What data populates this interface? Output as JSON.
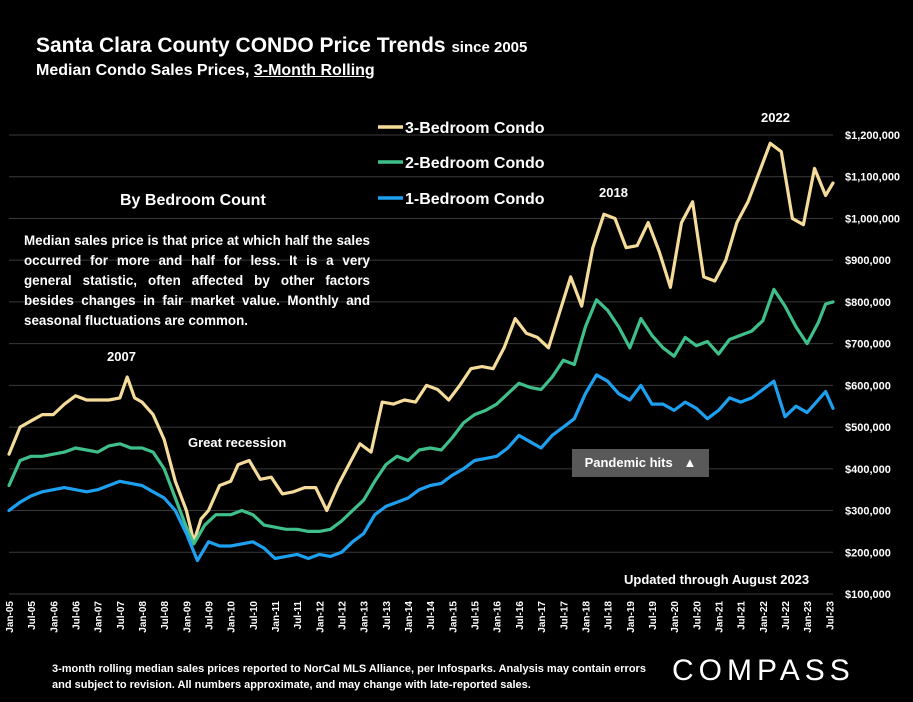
{
  "header": {
    "title": "Santa Clara County CONDO Price Trends",
    "title_suffix": "since 2005",
    "subtitle_prefix": "Median Condo Sales Prices, ",
    "subtitle_underlined": "3-Month Rolling"
  },
  "description": {
    "heading": "By Bedroom Count",
    "body": "Median sales price is that price at which half the sales occurred for more and half for less. It is a very general statistic, often affected by other factors besides changes in fair market value. Monthly and seasonal fluctuations are common."
  },
  "annotations": {
    "a2007": "2007",
    "recession": "Great recession",
    "a2018": "2018",
    "a2022": "2022",
    "pandemic": "Pandemic hits",
    "pandemic_arrow": "▲",
    "updated": "Updated through August 2023"
  },
  "footnote": "3-month rolling median sales prices reported to NorCal MLS Alliance, per Infosparks.  Analysis may contain errors and subject to revision. All numbers approximate, and may change with late-reported sales.",
  "logo": "COMPASS",
  "colors": {
    "bed3": "#f5dc9a",
    "bed2": "#3fbf8a",
    "bed1": "#1ea0f0",
    "grid": "#3a3a3a",
    "background": "#000000"
  },
  "chart_data": {
    "type": "line",
    "title": "Santa Clara County CONDO Price Trends since 2005",
    "subtitle": "Median Condo Sales Prices, 3-Month Rolling",
    "ylim": [
      100000,
      1200000
    ],
    "yticks": [
      100000,
      200000,
      300000,
      400000,
      500000,
      600000,
      700000,
      800000,
      900000,
      1000000,
      1100000,
      1200000
    ],
    "ytick_labels": [
      "$100,000",
      "$200,000",
      "$300,000",
      "$400,000",
      "$500,000",
      "$600,000",
      "$700,000",
      "$800,000",
      "$900,000",
      "$1,000,000",
      "$1,100,000",
      "$1,200,000"
    ],
    "grid": true,
    "legend_position": "top-center",
    "xlim": [
      "2005-01",
      "2023-08"
    ],
    "xtick_labels": [
      "Jan-05",
      "Jul-05",
      "Jan-06",
      "Jul-06",
      "Jan-07",
      "Jul-07",
      "Jan-08",
      "Jul-08",
      "Jan-09",
      "Jul-09",
      "Jan-10",
      "Jul-10",
      "Jan-11",
      "Jul-11",
      "Jan-12",
      "Jul-12",
      "Jan-13",
      "Jul-13",
      "Jan-14",
      "Jul-14",
      "Jan-15",
      "Jul-15",
      "Jan-16",
      "Jul-16",
      "Jan-17",
      "Jul-17",
      "Jan-18",
      "Jul-18",
      "Jan-19",
      "Jul-19",
      "Jan-20",
      "Jul-20",
      "Jan-21",
      "Jul-21",
      "Jan-22",
      "Jul-22",
      "Jan-23",
      "Jul-23"
    ],
    "series": [
      {
        "name": "3-Bedroom Condo",
        "points": [
          [
            "2005-01",
            435000
          ],
          [
            "2005-04",
            500000
          ],
          [
            "2005-07",
            515000
          ],
          [
            "2005-10",
            530000
          ],
          [
            "2006-01",
            530000
          ],
          [
            "2006-04",
            555000
          ],
          [
            "2006-07",
            575000
          ],
          [
            "2006-10",
            565000
          ],
          [
            "2007-01",
            565000
          ],
          [
            "2007-04",
            565000
          ],
          [
            "2007-07",
            570000
          ],
          [
            "2007-09",
            620000
          ],
          [
            "2007-11",
            570000
          ],
          [
            "2008-01",
            560000
          ],
          [
            "2008-04",
            530000
          ],
          [
            "2008-07",
            470000
          ],
          [
            "2008-10",
            370000
          ],
          [
            "2009-01",
            300000
          ],
          [
            "2009-03",
            225000
          ],
          [
            "2009-05",
            280000
          ],
          [
            "2009-07",
            300000
          ],
          [
            "2009-10",
            360000
          ],
          [
            "2010-01",
            370000
          ],
          [
            "2010-03",
            410000
          ],
          [
            "2010-06",
            420000
          ],
          [
            "2010-09",
            375000
          ],
          [
            "2010-12",
            380000
          ],
          [
            "2011-03",
            340000
          ],
          [
            "2011-06",
            345000
          ],
          [
            "2011-09",
            355000
          ],
          [
            "2011-12",
            355000
          ],
          [
            "2012-03",
            300000
          ],
          [
            "2012-06",
            360000
          ],
          [
            "2012-09",
            410000
          ],
          [
            "2012-12",
            460000
          ],
          [
            "2013-03",
            440000
          ],
          [
            "2013-06",
            560000
          ],
          [
            "2013-09",
            555000
          ],
          [
            "2013-12",
            565000
          ],
          [
            "2014-03",
            560000
          ],
          [
            "2014-06",
            600000
          ],
          [
            "2014-09",
            590000
          ],
          [
            "2014-12",
            565000
          ],
          [
            "2015-03",
            600000
          ],
          [
            "2015-06",
            640000
          ],
          [
            "2015-09",
            645000
          ],
          [
            "2015-12",
            640000
          ],
          [
            "2016-03",
            690000
          ],
          [
            "2016-06",
            760000
          ],
          [
            "2016-09",
            725000
          ],
          [
            "2016-12",
            715000
          ],
          [
            "2017-03",
            690000
          ],
          [
            "2017-06",
            775000
          ],
          [
            "2017-09",
            860000
          ],
          [
            "2017-12",
            790000
          ],
          [
            "2018-03",
            930000
          ],
          [
            "2018-06",
            1010000
          ],
          [
            "2018-09",
            1000000
          ],
          [
            "2018-12",
            930000
          ],
          [
            "2019-03",
            935000
          ],
          [
            "2019-06",
            990000
          ],
          [
            "2019-09",
            920000
          ],
          [
            "2019-12",
            835000
          ],
          [
            "2020-03",
            990000
          ],
          [
            "2020-06",
            1040000
          ],
          [
            "2020-09",
            860000
          ],
          [
            "2020-12",
            850000
          ],
          [
            "2021-03",
            900000
          ],
          [
            "2021-06",
            990000
          ],
          [
            "2021-09",
            1040000
          ],
          [
            "2021-12",
            1110000
          ],
          [
            "2022-03",
            1180000
          ],
          [
            "2022-06",
            1160000
          ],
          [
            "2022-09",
            1000000
          ],
          [
            "2022-12",
            985000
          ],
          [
            "2023-03",
            1120000
          ],
          [
            "2023-06",
            1055000
          ],
          [
            "2023-08",
            1085000
          ]
        ]
      },
      {
        "name": "2-Bedroom Condo",
        "points": [
          [
            "2005-01",
            360000
          ],
          [
            "2005-04",
            420000
          ],
          [
            "2005-07",
            430000
          ],
          [
            "2005-10",
            430000
          ],
          [
            "2006-01",
            435000
          ],
          [
            "2006-04",
            440000
          ],
          [
            "2006-07",
            450000
          ],
          [
            "2006-10",
            445000
          ],
          [
            "2007-01",
            440000
          ],
          [
            "2007-04",
            455000
          ],
          [
            "2007-07",
            460000
          ],
          [
            "2007-10",
            450000
          ],
          [
            "2008-01",
            450000
          ],
          [
            "2008-04",
            440000
          ],
          [
            "2008-07",
            400000
          ],
          [
            "2008-10",
            330000
          ],
          [
            "2009-01",
            260000
          ],
          [
            "2009-03",
            220000
          ],
          [
            "2009-06",
            265000
          ],
          [
            "2009-09",
            290000
          ],
          [
            "2010-01",
            290000
          ],
          [
            "2010-04",
            300000
          ],
          [
            "2010-07",
            290000
          ],
          [
            "2010-10",
            265000
          ],
          [
            "2011-01",
            260000
          ],
          [
            "2011-04",
            255000
          ],
          [
            "2011-07",
            255000
          ],
          [
            "2011-10",
            250000
          ],
          [
            "2012-01",
            250000
          ],
          [
            "2012-04",
            255000
          ],
          [
            "2012-07",
            275000
          ],
          [
            "2012-10",
            300000
          ],
          [
            "2013-01",
            325000
          ],
          [
            "2013-04",
            370000
          ],
          [
            "2013-07",
            410000
          ],
          [
            "2013-10",
            430000
          ],
          [
            "2014-01",
            420000
          ],
          [
            "2014-04",
            445000
          ],
          [
            "2014-07",
            450000
          ],
          [
            "2014-10",
            445000
          ],
          [
            "2015-01",
            475000
          ],
          [
            "2015-04",
            510000
          ],
          [
            "2015-07",
            530000
          ],
          [
            "2015-10",
            540000
          ],
          [
            "2016-01",
            555000
          ],
          [
            "2016-04",
            580000
          ],
          [
            "2016-07",
            605000
          ],
          [
            "2016-10",
            595000
          ],
          [
            "2017-01",
            590000
          ],
          [
            "2017-04",
            620000
          ],
          [
            "2017-07",
            660000
          ],
          [
            "2017-10",
            650000
          ],
          [
            "2018-01",
            740000
          ],
          [
            "2018-04",
            805000
          ],
          [
            "2018-07",
            780000
          ],
          [
            "2018-10",
            740000
          ],
          [
            "2019-01",
            690000
          ],
          [
            "2019-04",
            760000
          ],
          [
            "2019-07",
            720000
          ],
          [
            "2019-10",
            690000
          ],
          [
            "2020-01",
            670000
          ],
          [
            "2020-04",
            715000
          ],
          [
            "2020-07",
            695000
          ],
          [
            "2020-10",
            705000
          ],
          [
            "2021-01",
            675000
          ],
          [
            "2021-04",
            710000
          ],
          [
            "2021-07",
            720000
          ],
          [
            "2021-10",
            730000
          ],
          [
            "2022-01",
            755000
          ],
          [
            "2022-04",
            830000
          ],
          [
            "2022-07",
            790000
          ],
          [
            "2022-10",
            740000
          ],
          [
            "2023-01",
            700000
          ],
          [
            "2023-04",
            750000
          ],
          [
            "2023-06",
            795000
          ],
          [
            "2023-08",
            800000
          ]
        ]
      },
      {
        "name": "1-Bedroom Condo",
        "points": [
          [
            "2005-01",
            300000
          ],
          [
            "2005-04",
            320000
          ],
          [
            "2005-07",
            335000
          ],
          [
            "2005-10",
            345000
          ],
          [
            "2006-01",
            350000
          ],
          [
            "2006-04",
            355000
          ],
          [
            "2006-07",
            350000
          ],
          [
            "2006-10",
            345000
          ],
          [
            "2007-01",
            350000
          ],
          [
            "2007-04",
            360000
          ],
          [
            "2007-07",
            370000
          ],
          [
            "2007-10",
            365000
          ],
          [
            "2008-01",
            360000
          ],
          [
            "2008-04",
            345000
          ],
          [
            "2008-07",
            330000
          ],
          [
            "2008-10",
            300000
          ],
          [
            "2009-01",
            245000
          ],
          [
            "2009-04",
            180000
          ],
          [
            "2009-07",
            225000
          ],
          [
            "2009-10",
            215000
          ],
          [
            "2010-01",
            215000
          ],
          [
            "2010-04",
            220000
          ],
          [
            "2010-07",
            225000
          ],
          [
            "2010-10",
            210000
          ],
          [
            "2011-01",
            185000
          ],
          [
            "2011-04",
            190000
          ],
          [
            "2011-07",
            195000
          ],
          [
            "2011-10",
            185000
          ],
          [
            "2012-01",
            195000
          ],
          [
            "2012-04",
            190000
          ],
          [
            "2012-07",
            200000
          ],
          [
            "2012-10",
            225000
          ],
          [
            "2013-01",
            245000
          ],
          [
            "2013-04",
            290000
          ],
          [
            "2013-07",
            310000
          ],
          [
            "2013-10",
            320000
          ],
          [
            "2014-01",
            330000
          ],
          [
            "2014-04",
            350000
          ],
          [
            "2014-07",
            360000
          ],
          [
            "2014-10",
            365000
          ],
          [
            "2015-01",
            385000
          ],
          [
            "2015-04",
            400000
          ],
          [
            "2015-07",
            420000
          ],
          [
            "2015-10",
            425000
          ],
          [
            "2016-01",
            430000
          ],
          [
            "2016-04",
            450000
          ],
          [
            "2016-07",
            480000
          ],
          [
            "2016-10",
            465000
          ],
          [
            "2017-01",
            450000
          ],
          [
            "2017-04",
            480000
          ],
          [
            "2017-07",
            500000
          ],
          [
            "2017-10",
            520000
          ],
          [
            "2018-01",
            580000
          ],
          [
            "2018-04",
            625000
          ],
          [
            "2018-07",
            610000
          ],
          [
            "2018-10",
            580000
          ],
          [
            "2019-01",
            565000
          ],
          [
            "2019-04",
            600000
          ],
          [
            "2019-07",
            555000
          ],
          [
            "2019-10",
            555000
          ],
          [
            "2020-01",
            540000
          ],
          [
            "2020-04",
            560000
          ],
          [
            "2020-07",
            545000
          ],
          [
            "2020-10",
            520000
          ],
          [
            "2021-01",
            540000
          ],
          [
            "2021-04",
            570000
          ],
          [
            "2021-07",
            560000
          ],
          [
            "2021-10",
            570000
          ],
          [
            "2022-01",
            590000
          ],
          [
            "2022-04",
            610000
          ],
          [
            "2022-07",
            525000
          ],
          [
            "2022-10",
            550000
          ],
          [
            "2023-01",
            535000
          ],
          [
            "2023-04",
            565000
          ],
          [
            "2023-06",
            585000
          ],
          [
            "2023-08",
            545000
          ]
        ]
      }
    ]
  }
}
